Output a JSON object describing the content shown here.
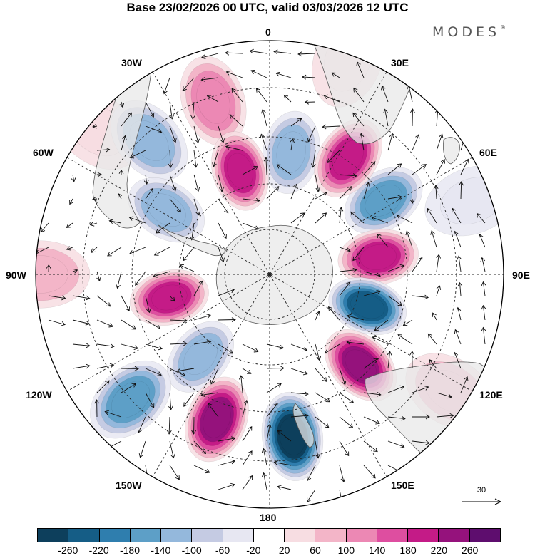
{
  "title": "Base 23/02/2026 00 UTC, valid 03/03/2026 12 UTC",
  "brand": "MODES",
  "brand_mark": "®",
  "map": {
    "projection": "south polar stereographic",
    "longitude_labels": [
      "0",
      "30E",
      "60E",
      "90E",
      "120E",
      "150E",
      "180",
      "150W",
      "120W",
      "90W",
      "60W",
      "30W"
    ],
    "wind_scale_value": "30",
    "centers": [
      {
        "name": "low-south-pacific-180",
        "lon": 172,
        "colat": 0.7,
        "value": -270
      },
      {
        "name": "high-south-pacific-160w",
        "lon": -160,
        "colat": 0.66,
        "value": 235
      },
      {
        "name": "high-southern-ocean-140e",
        "lon": 135,
        "colat": 0.55,
        "value": 245
      },
      {
        "name": "low-southern-ocean-110e",
        "lon": 108,
        "colat": 0.44,
        "value": -245
      },
      {
        "name": "high-southern-ocean-80e",
        "lon": 81,
        "colat": 0.47,
        "value": 205
      },
      {
        "name": "low-southern-ocean-55e",
        "lon": 57,
        "colat": 0.58,
        "value": -175
      },
      {
        "name": "high-southern-ocean-30e",
        "lon": 34,
        "colat": 0.6,
        "value": 200
      },
      {
        "name": "low-south-atlantic-10e",
        "lon": 10,
        "colat": 0.53,
        "value": -125
      },
      {
        "name": "high-south-atlantic-15w",
        "lon": -16,
        "colat": 0.46,
        "value": 215
      },
      {
        "name": "high-south-atlantic-20w",
        "lon": -18,
        "colat": 0.78,
        "value": 120
      },
      {
        "name": "low-south-atlantic-40w",
        "lon": -42,
        "colat": 0.77,
        "value": -105
      },
      {
        "name": "low-drake-passage-55w",
        "lon": -58,
        "colat": 0.52,
        "value": -135
      },
      {
        "name": "high-bellingshausen-105w",
        "lon": -103,
        "colat": 0.44,
        "value": 185
      },
      {
        "name": "low-amundsen-140w",
        "lon": -140,
        "colat": 0.46,
        "value": -125
      },
      {
        "name": "low-south-pacific-130w",
        "lon": -132,
        "colat": 0.8,
        "value": -165
      },
      {
        "name": "high-south-pacific-90w",
        "lon": -90,
        "colat": 0.98,
        "value": 70
      },
      {
        "name": "high-southern-africa-25e",
        "lon": 20,
        "colat": 0.98,
        "value": 40
      },
      {
        "name": "high-australia-125e",
        "lon": 123,
        "colat": 0.92,
        "value": 60
      },
      {
        "name": "low-indian-ocean-70e",
        "lon": 70,
        "colat": 0.92,
        "value": -30
      },
      {
        "name": "high-south-america-50w",
        "lon": -50,
        "colat": 0.97,
        "value": 50
      }
    ]
  },
  "colorbar": {
    "colors": [
      "#0d3f5c",
      "#155d86",
      "#2f7eae",
      "#5d9fc7",
      "#94b8dc",
      "#c5cbe3",
      "#e7e7f2",
      "#ffffff",
      "#f7dde2",
      "#f3b5c8",
      "#ec88b4",
      "#de4ea0",
      "#c41b87",
      "#95127c",
      "#5e0d6e"
    ],
    "ticks": [
      "-260",
      "-220",
      "-180",
      "-140",
      "-100",
      "-60",
      "-20",
      "20",
      "60",
      "100",
      "140",
      "180",
      "220",
      "260"
    ]
  }
}
